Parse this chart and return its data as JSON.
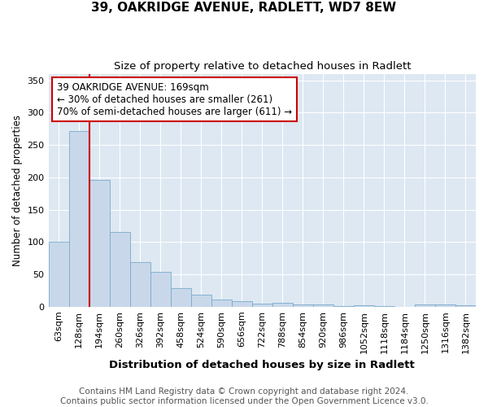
{
  "title_line1": "39, OAKRIDGE AVENUE, RADLETT, WD7 8EW",
  "title_line2": "Size of property relative to detached houses in Radlett",
  "xlabel": "Distribution of detached houses by size in Radlett",
  "ylabel": "Number of detached properties",
  "categories": [
    "63sqm",
    "128sqm",
    "194sqm",
    "260sqm",
    "326sqm",
    "392sqm",
    "458sqm",
    "524sqm",
    "590sqm",
    "656sqm",
    "722sqm",
    "788sqm",
    "854sqm",
    "920sqm",
    "986sqm",
    "1052sqm",
    "1118sqm",
    "1184sqm",
    "1250sqm",
    "1316sqm",
    "1382sqm"
  ],
  "values": [
    100,
    271,
    196,
    115,
    69,
    54,
    29,
    18,
    11,
    9,
    5,
    6,
    4,
    3,
    1,
    2,
    1,
    0,
    4,
    3,
    2
  ],
  "bar_color": "#c8d8ea",
  "bar_edge_color": "#7aaacb",
  "vline_color": "#cc0000",
  "annotation_text": "39 OAKRIDGE AVENUE: 169sqm\n← 30% of detached houses are smaller (261)\n70% of semi-detached houses are larger (611) →",
  "annotation_box_color": "#ffffff",
  "annotation_box_edge": "#cc0000",
  "ylim": [
    0,
    360
  ],
  "yticks": [
    0,
    50,
    100,
    150,
    200,
    250,
    300,
    350
  ],
  "background_color": "#ffffff",
  "plot_background_color": "#dde8f2",
  "grid_color": "#ffffff",
  "footer_text": "Contains HM Land Registry data © Crown copyright and database right 2024.\nContains public sector information licensed under the Open Government Licence v3.0.",
  "title_fontsize": 11,
  "subtitle_fontsize": 9.5,
  "xlabel_fontsize": 9.5,
  "ylabel_fontsize": 8.5,
  "tick_fontsize": 8,
  "annotation_fontsize": 8.5,
  "footer_fontsize": 7.5
}
